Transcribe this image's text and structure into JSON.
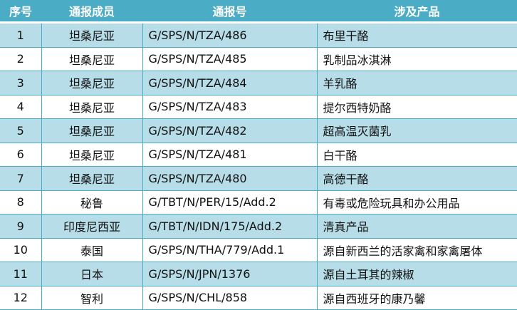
{
  "headers": [
    "序号",
    "通报成员",
    "通报号",
    "涉及产品"
  ],
  "rows": [
    [
      "1",
      "坦桑尼亚",
      "G/SPS/N/TZA/486",
      "布里干酪"
    ],
    [
      "2",
      "坦桑尼亚",
      "G/SPS/N/TZA/485",
      "乳制品冰淇淋"
    ],
    [
      "3",
      "坦桑尼亚",
      "G/SPS/N/TZA/484",
      "羊乳酪"
    ],
    [
      "4",
      "坦桑尼亚",
      "G/SPS/N/TZA/483",
      "提尔西特奶酪"
    ],
    [
      "5",
      "坦桑尼亚",
      "G/SPS/N/TZA/482",
      "超高温灭菌乳"
    ],
    [
      "6",
      "坦桑尼亚",
      "G/SPS/N/TZA/481",
      "白干酪"
    ],
    [
      "7",
      "坦桑尼亚",
      "G/SPS/N/TZA/480",
      "高德干酪"
    ],
    [
      "8",
      "秘鲁",
      "G/TBT/N/PER/15/Add.2",
      "有毒或危险玩具和办公用品"
    ],
    [
      "9",
      "印度尼西亚",
      "G/TBT/N/IDN/175/Add.2",
      "清真产品"
    ],
    [
      "10",
      "泰国",
      "G/SPS/N/THA/779/Add.1",
      "源自新西兰的活家禽和家禽屠体"
    ],
    [
      "11",
      "日本",
      "G/SPS/N/JPN/1376",
      "源自土耳其的辣椒"
    ],
    [
      "12",
      "智利",
      "G/SPS/N/CHL/858",
      "源自西班牙的康乃馨"
    ]
  ],
  "colors": {
    "header": "#4BACC6",
    "band": "#B7DDE8"
  }
}
